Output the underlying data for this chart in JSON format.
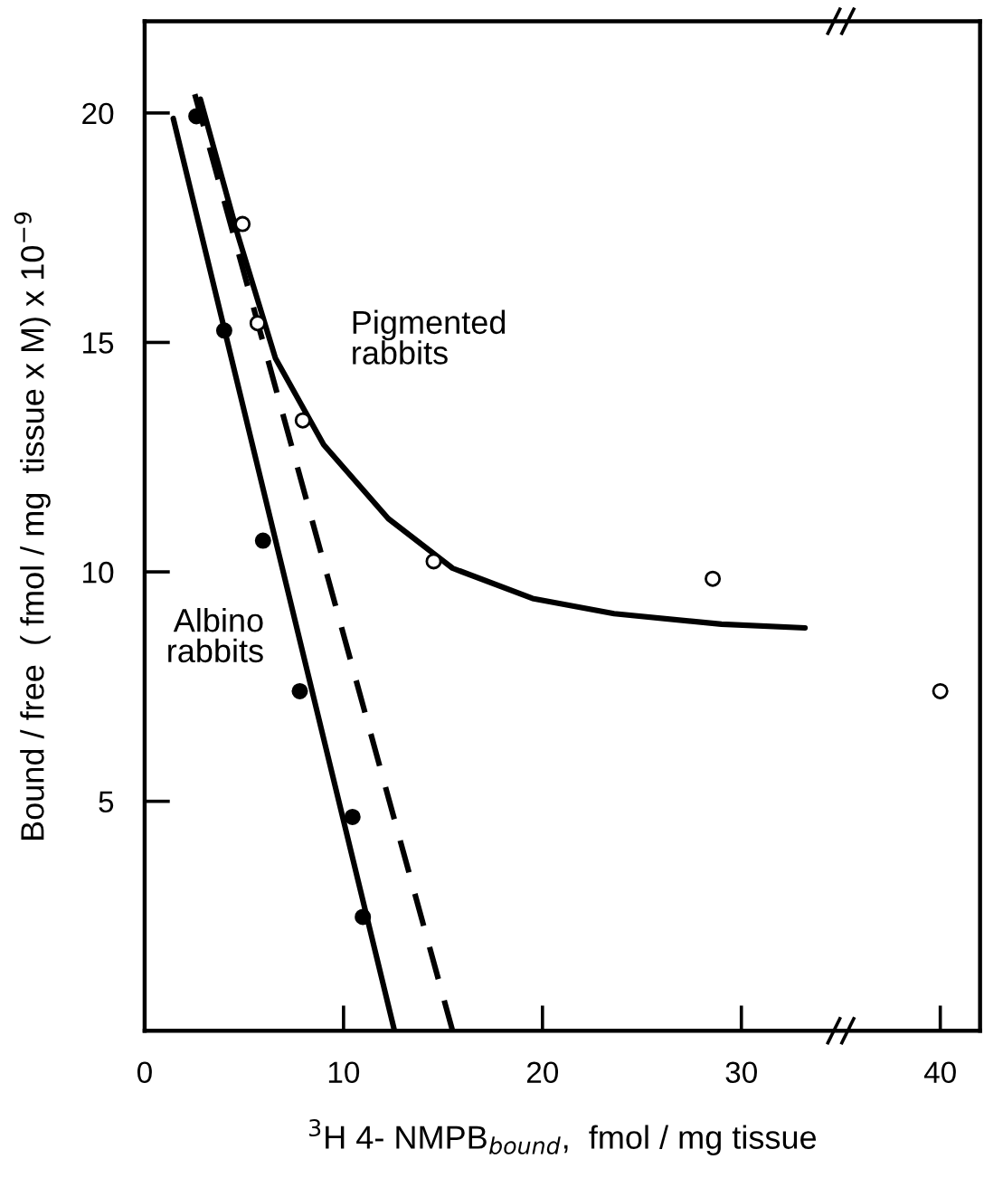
{
  "chart_data": {
    "type": "scatter",
    "xlabel": "$^{3}$H 4- NMPB$_{bound}$,  fmol / mg tissue",
    "ylabel": "Bound / free  ( fmol / mg  tissue x M) x 10$^{−9}$",
    "xlim": [
      0,
      42
    ],
    "ylim": [
      0,
      22
    ],
    "xticks": [
      0,
      10,
      20,
      30,
      40
    ],
    "yticks": [
      5,
      10,
      15,
      20
    ],
    "grid": false,
    "series": [
      {
        "marker": "circle",
        "color": "#000000",
        "x": [
          2.6,
          4.0,
          5.95,
          7.8,
          10.45,
          10.97
        ],
        "values": [
          19.93,
          15.26,
          10.68,
          7.4,
          4.66,
          2.48
        ]
      },
      {
        "name": "Albino\nrabbits",
        "type": "line",
        "line_style": "solid",
        "color": "#000000",
        "x": [
          1.44,
          12.56
        ],
        "values": [
          19.88,
          0
        ]
      },
      {
        "type": "line",
        "line_style": "dashed",
        "color": "#000000",
        "x": [
          2.52,
          15.48
        ],
        "values": [
          20.41,
          0
        ]
      },
      {
        "marker": "circle",
        "color": "#ffffff",
        "x": [
          4.92,
          5.68,
          7.95,
          14.53,
          28.56,
          40
        ],
        "values": [
          17.58,
          15.42,
          13.3,
          10.23,
          9.85,
          7.4
        ]
      },
      {
        "name": "Pigmented\nrabbits",
        "type": "line",
        "line_style": "solid",
        "color": "#000000",
        "x": [
          2.8,
          4.68,
          6.57,
          9.0,
          12.25,
          15.48,
          19.5,
          23.6,
          29.0,
          33.2
        ],
        "values": [
          20.3,
          17.35,
          14.66,
          12.77,
          11.16,
          10.08,
          9.42,
          9.09,
          8.86,
          8.78
        ]
      }
    ]
  }
}
